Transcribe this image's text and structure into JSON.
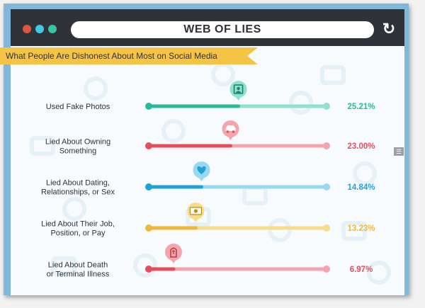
{
  "window": {
    "title": "WEB OF LIES",
    "refresh_icon": "refresh-icon",
    "controls": [
      "close-dot",
      "minimize-dot",
      "maximize-dot"
    ]
  },
  "ribbon": {
    "text": "What People Are Dishonest About Most on Social Media"
  },
  "chart_data": {
    "type": "bar",
    "orientation": "horizontal",
    "xlim": [
      0,
      50
    ],
    "categories": [
      "Used Fake Photos",
      "Lied About Owning Something",
      "Lied About Dating, Relationships, or Sex",
      "Lied About Their Job, Position, or Pay",
      "Lied About Death or Terminal Illness"
    ],
    "category_lines": [
      [
        "Used Fake Photos"
      ],
      [
        "Lied About Owning",
        "Something"
      ],
      [
        "Lied About Dating,",
        "Relationships, or Sex"
      ],
      [
        "Lied About Their Job,",
        "Position, or Pay"
      ],
      [
        "Lied About Death",
        "or Terminal Illness"
      ]
    ],
    "values": [
      25.21,
      23.0,
      14.84,
      13.23,
      6.97
    ],
    "value_labels": [
      "25.21%",
      "23.00%",
      "14.84%",
      "13.23%",
      "6.97%"
    ],
    "colors": [
      "#2bb99c",
      "#e84c5b",
      "#1fa3d6",
      "#f2b632",
      "#e84c5b"
    ],
    "track_colors": [
      "#8fe0cf",
      "#f5a4ac",
      "#98d9f2",
      "#f7dc8a",
      "#f5a4ac"
    ],
    "icons": [
      "photo-icon",
      "car-icon",
      "heart-icon",
      "money-icon",
      "tombstone-icon"
    ],
    "grid": false,
    "legend": "none"
  }
}
